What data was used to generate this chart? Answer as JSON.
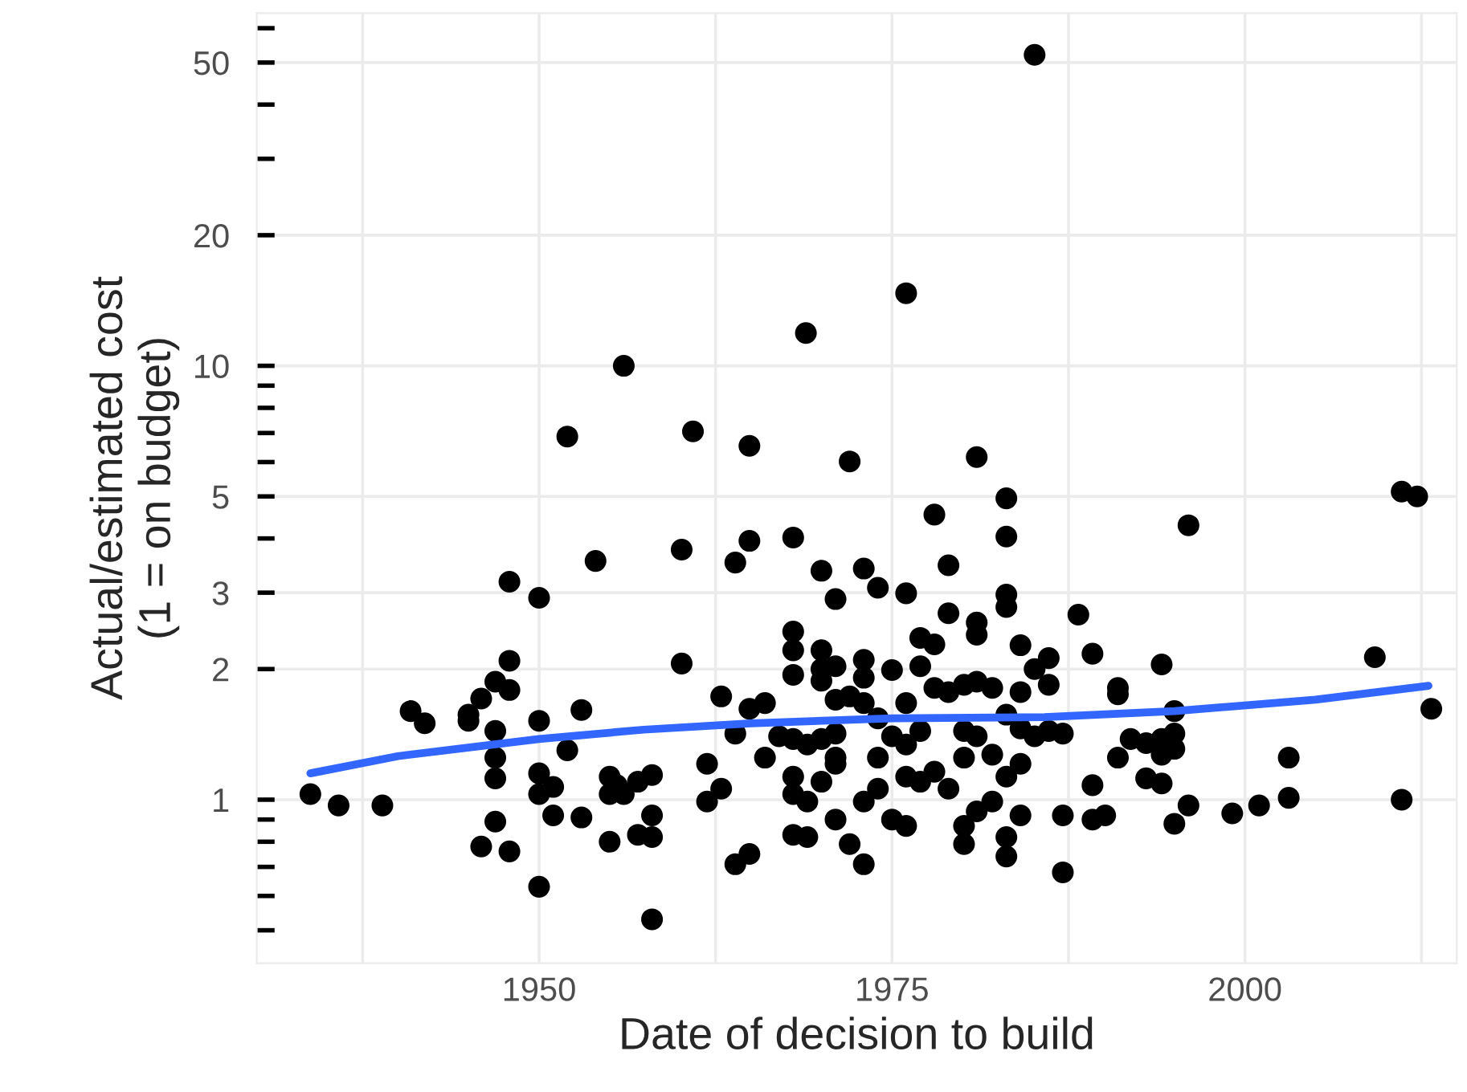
{
  "chart_data": {
    "type": "scatter",
    "xlabel": "Date of decision to build",
    "ylabel": "Actual/estimated cost\n(1 = on budget)",
    "log": "y",
    "grid": true,
    "marker": "circle",
    "xlim": [
      1930,
      2015
    ],
    "xticks": [
      {
        "value": 1937.5,
        "label": null
      },
      1950,
      {
        "value": 1962.5,
        "label": null
      },
      1975,
      {
        "value": 1987.5,
        "label": null
      },
      2000,
      {
        "value": 2012.5,
        "label": null
      }
    ],
    "ylim": [
      0.42,
      65
    ],
    "yticks": [
      {
        "value": 0.5,
        "label": null
      },
      {
        "value": 0.6,
        "label": null
      },
      {
        "value": 0.7,
        "label": null
      },
      {
        "value": 0.8,
        "label": null
      },
      {
        "value": 0.9,
        "label": null
      },
      1,
      2,
      3,
      {
        "value": 4,
        "label": null
      },
      5,
      {
        "value": 6,
        "label": null
      },
      {
        "value": 7,
        "label": null
      },
      {
        "value": 8,
        "label": null
      },
      {
        "value": 9,
        "label": null
      },
      10,
      20,
      {
        "value": 30,
        "label": null
      },
      {
        "value": 40,
        "label": null
      },
      50,
      {
        "value": 60,
        "label": null
      }
    ],
    "series": [
      {
        "color": "#000000",
        "x": [
          1933.8,
          1935.8,
          1938.9,
          1940.9,
          1941.9,
          1945.0,
          1945.0,
          1945.9,
          1946.9,
          1947.9,
          1947.9,
          1947.9,
          1946.9,
          1946.9,
          1946.9,
          1946.9,
          1945.9,
          1947.9,
          1950,
          1950,
          1950,
          1950,
          1951,
          1951,
          1950,
          1952,
          1953,
          1953,
          1952,
          1956,
          1954,
          1955,
          1955.5,
          1956,
          1955,
          1955,
          1957,
          1958,
          1958,
          1958,
          1957,
          1958,
          1960.1,
          1960.1,
          1960.9,
          1985.1,
          1976.0,
          1968.9,
          1964.9,
          1972.0,
          1981.0,
          1983.1,
          1978.0,
          1963.9,
          1964.9,
          1968.0,
          1970.0,
          1971.0,
          1973.0,
          1974.0,
          1976.0,
          1979.0,
          1983.1,
          1983.1,
          1983.1,
          1988.2,
          1979.0,
          1981.0,
          1981.0,
          1968.0,
          1968.0,
          1968.0,
          1970,
          1970,
          1970,
          1971,
          1973,
          1973,
          1975.0,
          1977,
          1978,
          1977,
          1984.1,
          1986.1,
          1985.1,
          1989.2,
          1991.0,
          1962.9,
          1986.1,
          1984.1,
          1964.9,
          1966,
          1963.9,
          1966,
          1967,
          1968,
          1969,
          1970,
          1971,
          1971,
          1971,
          1972,
          1973,
          1974,
          1975,
          1976,
          1976,
          1977,
          1978,
          1979,
          1980.1,
          1981,
          1982.1,
          1980.1,
          1981,
          1982.1,
          1984.1,
          1985.1,
          1986.1,
          1987.1,
          1983.1,
          1961.9,
          1962.9,
          1961.9,
          1968,
          1968,
          1969,
          1970,
          1971,
          1971,
          1972,
          1973,
          1973,
          1974,
          1974,
          1975,
          1976,
          1976,
          1977,
          1978,
          1979,
          1980.1,
          1980.1,
          1980.1,
          1981,
          1982.1,
          1983.1,
          1983.1,
          1983.1,
          1984.1,
          1984.1,
          1987.1,
          1987.1,
          1989.2,
          1989.2,
          1990.1,
          1964.9,
          1963.9,
          1968,
          1969,
          1991,
          2011.1,
          2012.2,
          1996.0,
          1994.1,
          1991.0,
          2009.2,
          2013.2,
          1995.0,
          1995,
          1994.1,
          1993,
          1991.9,
          1994.1,
          1995,
          1993,
          1994.1,
          1995,
          1996,
          1999.1,
          2001,
          2003.1,
          2003.1,
          2011.1
        ],
        "values": [
          1.03,
          0.97,
          0.97,
          1.6,
          1.5,
          1.57,
          1.52,
          1.71,
          1.87,
          2.09,
          1.79,
          3.18,
          1.44,
          1.25,
          1.12,
          0.89,
          0.78,
          0.76,
          2.92,
          1.52,
          1.15,
          1.03,
          1.07,
          0.92,
          0.63,
          1.3,
          1.61,
          0.91,
          6.87,
          10.0,
          3.55,
          1.13,
          1.08,
          1.03,
          1.03,
          0.8,
          0.83,
          0.82,
          0.92,
          1.14,
          1.1,
          0.53,
          3.77,
          2.06,
          7.06,
          52.1,
          14.7,
          11.9,
          6.54,
          6.02,
          6.16,
          4.95,
          4.54,
          3.52,
          3.95,
          4.02,
          3.37,
          2.9,
          3.41,
          3.08,
          2.99,
          3.47,
          4.04,
          2.97,
          2.78,
          2.67,
          2.69,
          2.56,
          2.4,
          2.44,
          2.21,
          1.94,
          2.21,
          2.0,
          1.88,
          2.03,
          2.1,
          1.91,
          1.99,
          2.36,
          2.28,
          2.03,
          2.27,
          2.12,
          2.0,
          2.17,
          1.81,
          1.73,
          1.84,
          1.77,
          1.62,
          1.67,
          1.42,
          1.25,
          1.4,
          1.38,
          1.34,
          1.38,
          1.42,
          1.25,
          1.7,
          1.73,
          1.67,
          1.54,
          1.4,
          1.34,
          1.67,
          1.44,
          1.81,
          1.77,
          1.84,
          1.87,
          1.81,
          1.44,
          1.4,
          1.27,
          1.46,
          1.4,
          1.44,
          1.42,
          1.57,
          1.21,
          1.06,
          0.99,
          1.13,
          1.03,
          0.99,
          1.1,
          1.21,
          0.9,
          0.79,
          0.71,
          0.99,
          1.06,
          1.25,
          0.9,
          0.87,
          1.13,
          1.1,
          1.16,
          1.06,
          1.25,
          0.87,
          0.79,
          0.94,
          0.99,
          1.13,
          0.82,
          0.74,
          1.21,
          0.92,
          0.92,
          0.68,
          1.08,
          0.9,
          0.92,
          0.75,
          0.71,
          0.83,
          0.82,
          1.25,
          5.13,
          5.0,
          4.29,
          2.05,
          1.75,
          2.13,
          1.62,
          1.6,
          1.42,
          1.38,
          1.35,
          1.38,
          1.27,
          1.31,
          1.12,
          1.09,
          0.88,
          0.97,
          0.93,
          0.97,
          1.01,
          1.25,
          1.0
        ]
      },
      {
        "type": "line",
        "marker": "none",
        "color": "#3366ff",
        "x": [
          1933.8,
          1940,
          1950,
          1957.4,
          1965,
          1975,
          1985.8,
          1995,
          2005,
          2013
        ],
        "values": [
          1.15,
          1.26,
          1.38,
          1.45,
          1.5,
          1.54,
          1.55,
          1.6,
          1.7,
          1.83
        ]
      }
    ]
  }
}
